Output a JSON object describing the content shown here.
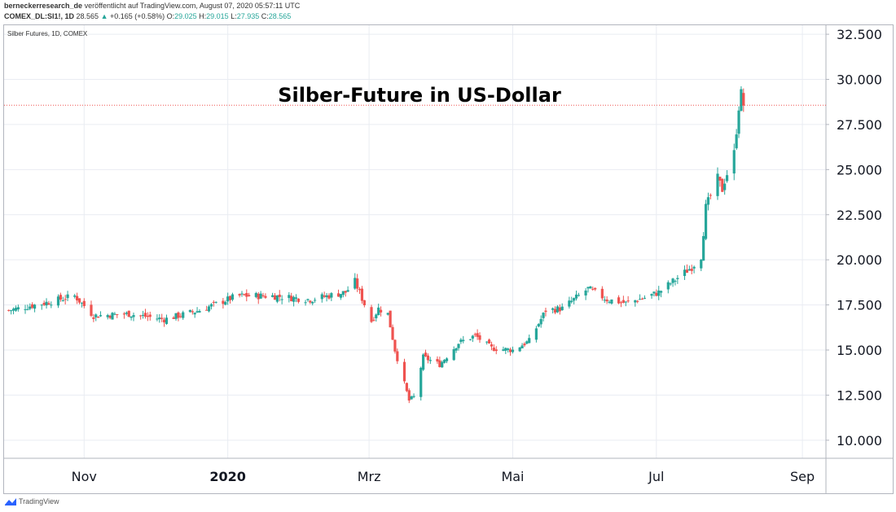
{
  "header": {
    "author": "berneckerresearch_de",
    "published": "veröffentlicht auf TradingView.com, August 07, 2020 05:57:11 UTC",
    "symbol": "COMEX_DL:SI1!, 1D",
    "last": "28.565",
    "change_arrow": "▲",
    "change": "+0.165 (+0.58%)",
    "o_label": "O:",
    "o": "29.025",
    "h_label": "H:",
    "h": "29.015",
    "l_label": "L:",
    "l": "27.935",
    "c_label": "C:",
    "c": "28.565"
  },
  "chart_title": "Silber Futures, 1D, COMEX",
  "footer": {
    "brand": "TradingView",
    "icon": "tradingview-logo"
  },
  "colors": {
    "up": "#26a69a",
    "down": "#ef5350",
    "grid": "#e9ecf2",
    "price_line": "#ef5350"
  },
  "chart_data": {
    "type": "candlestick",
    "title": "Silber-Future in US-Dollar",
    "xlabel": "",
    "ylabel": "",
    "ylim": [
      9.0,
      33.0
    ],
    "y_ticks": [
      "10.000",
      "12.500",
      "15.000",
      "17.500",
      "20.000",
      "22.500",
      "25.000",
      "27.500",
      "30.000",
      "32.500"
    ],
    "x_ticks": [
      {
        "label": "Nov",
        "date": "2019-11-01",
        "bold": false
      },
      {
        "label": "2020",
        "date": "2020-01-01",
        "bold": true
      },
      {
        "label": "Mrz",
        "date": "2020-03-01",
        "bold": false
      },
      {
        "label": "Mai",
        "date": "2020-05-01",
        "bold": false
      },
      {
        "label": "Jul",
        "date": "2020-07-01",
        "bold": false
      },
      {
        "label": "Sep",
        "date": "2020-09-01",
        "bold": false
      }
    ],
    "x_range": [
      "2019-09-28",
      "2020-09-11"
    ],
    "last_price": 28.565,
    "grid": true,
    "close_anchors": [
      [
        "2019-09-30",
        17.2
      ],
      [
        "2019-10-15",
        17.6
      ],
      [
        "2019-10-28",
        18.0
      ],
      [
        "2019-11-05",
        16.9
      ],
      [
        "2019-11-20",
        17.0
      ],
      [
        "2019-12-05",
        16.7
      ],
      [
        "2019-12-20",
        17.2
      ],
      [
        "2020-01-05",
        18.0
      ],
      [
        "2020-01-20",
        18.0
      ],
      [
        "2020-02-05",
        17.8
      ],
      [
        "2020-02-20",
        18.2
      ],
      [
        "2020-02-24",
        18.8
      ],
      [
        "2020-03-02",
        16.6
      ],
      [
        "2020-03-05",
        17.3
      ],
      [
        "2020-03-09",
        17.0
      ],
      [
        "2020-03-12",
        15.0
      ],
      [
        "2020-03-18",
        12.2
      ],
      [
        "2020-03-20",
        12.4
      ],
      [
        "2020-03-24",
        14.6
      ],
      [
        "2020-03-31",
        14.2
      ],
      [
        "2020-04-08",
        15.4
      ],
      [
        "2020-04-15",
        15.8
      ],
      [
        "2020-04-22",
        15.1
      ],
      [
        "2020-05-01",
        15.0
      ],
      [
        "2020-05-08",
        15.5
      ],
      [
        "2020-05-15",
        17.2
      ],
      [
        "2020-05-22",
        17.3
      ],
      [
        "2020-06-02",
        18.4
      ],
      [
        "2020-06-10",
        17.8
      ],
      [
        "2020-06-18",
        17.6
      ],
      [
        "2020-06-26",
        17.9
      ],
      [
        "2020-07-02",
        18.2
      ],
      [
        "2020-07-10",
        19.0
      ],
      [
        "2020-07-16",
        19.6
      ],
      [
        "2020-07-20",
        20.2
      ],
      [
        "2020-07-22",
        22.9
      ],
      [
        "2020-07-27",
        24.5
      ],
      [
        "2020-07-29",
        23.9
      ],
      [
        "2020-07-30",
        24.4
      ],
      [
        "2020-08-03",
        25.9
      ],
      [
        "2020-08-05",
        28.5
      ],
      [
        "2020-08-06",
        29.2
      ],
      [
        "2020-08-07",
        28.6
      ]
    ]
  }
}
